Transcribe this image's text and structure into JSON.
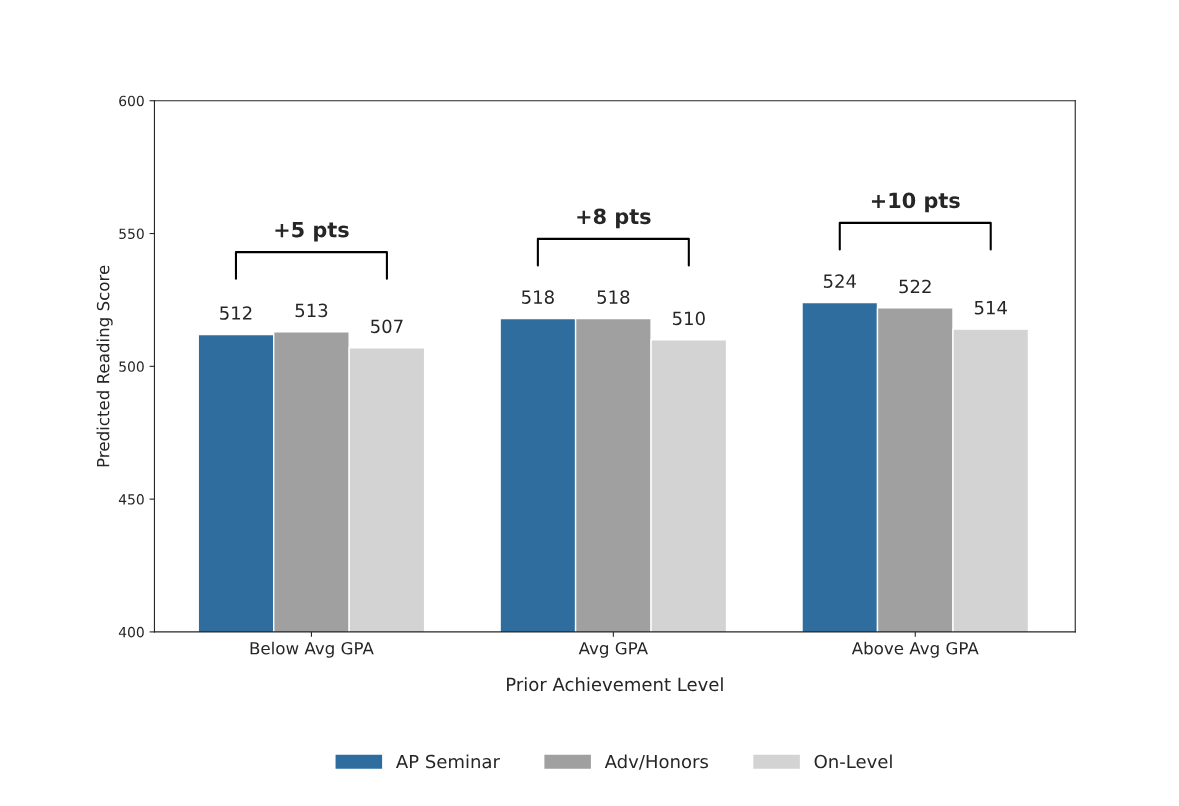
{
  "chart_data": {
    "type": "bar",
    "xlabel": "Prior Achievement Level",
    "ylabel": "Predicted Reading Score",
    "categories": [
      "Below Avg GPA",
      "Avg GPA",
      "Above Avg GPA"
    ],
    "series": [
      {
        "name": "AP Seminar",
        "color": "#2e6d9e",
        "values": [
          512,
          518,
          524
        ]
      },
      {
        "name": "Adv/Honors",
        "color": "#a0a0a0",
        "values": [
          513,
          518,
          522
        ]
      },
      {
        "name": "On-Level",
        "color": "#d3d3d3",
        "values": [
          507,
          510,
          514
        ]
      }
    ],
    "ylim": [
      400,
      600
    ],
    "yticks": [
      400,
      450,
      500,
      550,
      600
    ],
    "grid": false,
    "legend": "bottom",
    "data_labels": true,
    "annotations": [
      "+5 pts",
      "+8 pts",
      "+10 pts"
    ]
  }
}
